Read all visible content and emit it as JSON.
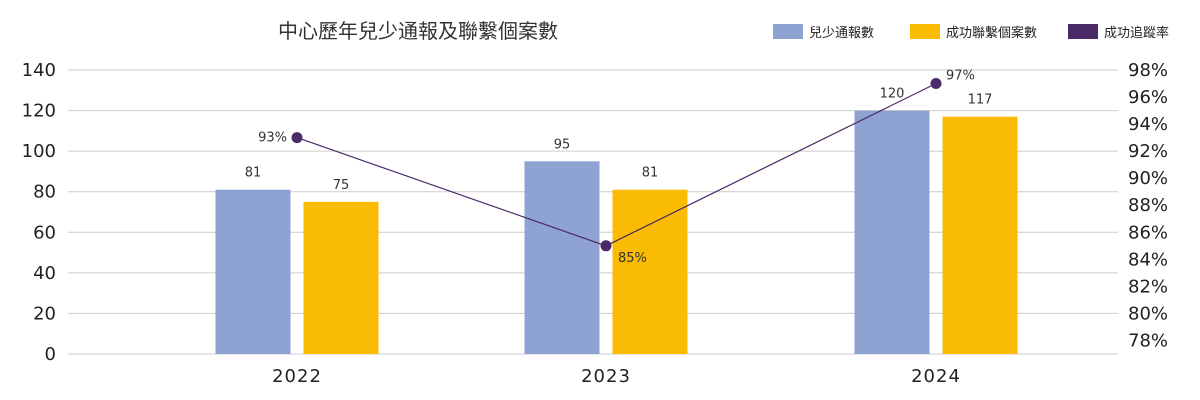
{
  "chart_data": {
    "type": "bar+line",
    "title": "中心歷年兒少通報及聯繫個案數",
    "categories": [
      "2022",
      "2023",
      "2024"
    ],
    "series": [
      {
        "name": "兒少通報數",
        "type": "bar",
        "axis": "left",
        "color": "#8fa3d3",
        "values": [
          81,
          95,
          120
        ],
        "labels": [
          "81",
          "95",
          "120"
        ]
      },
      {
        "name": "成功聯繫個案數",
        "type": "bar",
        "axis": "left",
        "color": "#f9bc02",
        "values": [
          75,
          81,
          117
        ],
        "labels": [
          "75",
          "81",
          "117"
        ]
      },
      {
        "name": "成功追蹤率",
        "type": "line",
        "axis": "right",
        "color": "#4b2a68",
        "values": [
          93,
          85,
          97
        ],
        "labels": [
          "93%",
          "85%",
          "97%"
        ]
      }
    ],
    "y_left": {
      "min": 0,
      "max": 140,
      "ticks": [
        "0",
        "20",
        "40",
        "60",
        "80",
        "100",
        "120",
        "140"
      ]
    },
    "y_right": {
      "min": 77,
      "max": 98,
      "ticks": [
        "78%",
        "80%",
        "82%",
        "84%",
        "86%",
        "88%",
        "90%",
        "92%",
        "94%",
        "96%",
        "98%"
      ]
    },
    "legend_position": "top-right",
    "grid": true
  }
}
